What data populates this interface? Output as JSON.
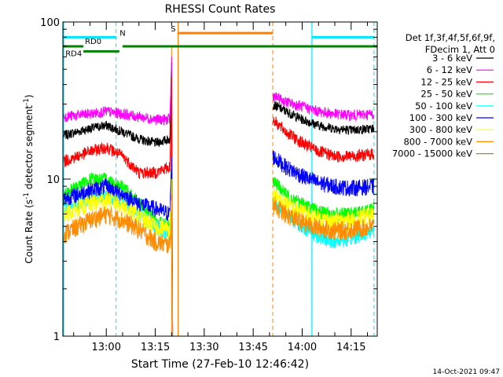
{
  "chart_data": {
    "type": "line",
    "title": "RHESSI Count Rates",
    "xlabel": "Start Time (27-Feb-10 12:46:42)",
    "ylabel": "Count Rate (s⁻¹ detector segment⁻¹)",
    "ylabel_main": "Count Rate (s",
    "ylabel_mid": " detector segment",
    "ylabel_sup": "-1",
    "ylabel_close": ")",
    "yscale": "log",
    "ylim": [
      1,
      100
    ],
    "xlim": [
      "12:46:42",
      "14:23:00"
    ],
    "x_ticks": [
      "13:00",
      "13:15",
      "13:30",
      "13:45",
      "14:00",
      "14:15"
    ],
    "y_ticks": [
      "1",
      "10",
      "100"
    ],
    "timestamp": "14-Oct-2021 09:47",
    "legend_header": [
      "Det 1f,3f,4f,5f,6f,9f,",
      "FDecim 1, Att 0"
    ],
    "legend_placement": "right",
    "gap": [
      "13:22:00",
      "13:51:00"
    ],
    "spike_time": "13:20:00",
    "series": [
      {
        "name": "3 - 6 keV",
        "color": "#000000",
        "x": [
          "12:47",
          "12:55",
          "13:00",
          "13:05",
          "13:10",
          "13:15",
          "13:19:30",
          "13:20:00",
          "13:51",
          "13:55",
          "14:00",
          "14:05",
          "14:10",
          "14:15",
          "14:22"
        ],
        "values": [
          19,
          21,
          22,
          20,
          18,
          17,
          18,
          55,
          30,
          27,
          24,
          22,
          21,
          20.5,
          21
        ]
      },
      {
        "name": "6 - 12 keV",
        "color": "#ff00ff",
        "x": [
          "12:47",
          "12:55",
          "13:00",
          "13:05",
          "13:10",
          "13:15",
          "13:19:30",
          "13:20:00",
          "13:51",
          "13:55",
          "14:00",
          "14:05",
          "14:10",
          "14:15",
          "14:22"
        ],
        "values": [
          25,
          26,
          27,
          26,
          25,
          24,
          24,
          60,
          34,
          31,
          29,
          27,
          26,
          25.5,
          26
        ]
      },
      {
        "name": "12 - 25 keV",
        "color": "#ff0000",
        "x": [
          "12:47",
          "12:55",
          "13:00",
          "13:05",
          "13:10",
          "13:15",
          "13:19:30",
          "13:20:00",
          "13:51",
          "13:55",
          "14:00",
          "14:05",
          "14:10",
          "14:15",
          "14:22"
        ],
        "values": [
          13,
          15,
          16,
          14,
          11,
          11,
          12,
          45,
          24,
          20,
          17,
          15,
          14,
          14,
          14.5
        ]
      },
      {
        "name": "25 - 50 keV",
        "color": "#00ff00",
        "x": [
          "12:47",
          "12:55",
          "13:00",
          "13:05",
          "13:10",
          "13:15",
          "13:19:30",
          "13:20:00",
          "13:51",
          "13:55",
          "14:00",
          "14:05",
          "14:10",
          "14:15",
          "14:22"
        ],
        "values": [
          8,
          10,
          10,
          9,
          7,
          5.5,
          5,
          12,
          10,
          8,
          7,
          6.2,
          6,
          6,
          6.5
        ]
      },
      {
        "name": "50 - 100 keV",
        "color": "#00ffff",
        "x": [
          "12:47",
          "12:55",
          "13:00",
          "13:05",
          "13:10",
          "13:15",
          "13:19:30",
          "13:20:00",
          "13:51",
          "13:55",
          "14:00",
          "14:05",
          "14:10",
          "14:15",
          "14:22"
        ],
        "values": [
          6.5,
          7.5,
          8,
          7.2,
          6,
          5,
          4.5,
          10,
          7,
          6,
          5,
          4.3,
          4,
          4.2,
          4.8
        ]
      },
      {
        "name": "100 - 300 keV",
        "color": "#0000ff",
        "x": [
          "12:47",
          "12:55",
          "13:00",
          "13:05",
          "13:10",
          "13:15",
          "13:19:30",
          "13:20:00",
          "13:51",
          "13:55",
          "14:00",
          "14:05",
          "14:10",
          "14:15",
          "14:22"
        ],
        "values": [
          7.5,
          8.5,
          9,
          8,
          7,
          6.5,
          6,
          14,
          14,
          12,
          10.5,
          9.5,
          9,
          8.8,
          9
        ]
      },
      {
        "name": "300 - 800 keV",
        "color": "#ffff00",
        "x": [
          "12:47",
          "12:55",
          "13:00",
          "13:05",
          "13:10",
          "13:15",
          "13:19:30",
          "13:20:00",
          "13:51",
          "13:55",
          "14:00",
          "14:05",
          "14:10",
          "14:15",
          "14:22"
        ],
        "values": [
          6,
          7,
          7.5,
          6.8,
          5.8,
          5,
          4.8,
          10,
          8,
          7,
          6.2,
          5.6,
          5.4,
          5.5,
          6
        ]
      },
      {
        "name": "800 - 7000 keV",
        "color": "#ff8c00",
        "x": [
          "12:47",
          "12:55",
          "13:00",
          "13:05",
          "13:10",
          "13:15",
          "13:19:30",
          "13:20:00",
          "13:51",
          "13:55",
          "14:00",
          "14:05",
          "14:10",
          "14:15",
          "14:22"
        ],
        "values": [
          4.5,
          5.5,
          6,
          5.5,
          4.8,
          4,
          3.8,
          8,
          7,
          6,
          5.3,
          4.9,
          4.7,
          4.8,
          5
        ]
      },
      {
        "name": "7000 - 15000 keV",
        "color": "#a0882a",
        "x": [],
        "values": []
      }
    ],
    "annotations": {
      "N": {
        "label": "N",
        "color": "#00e5ff",
        "segments": [
          [
            "12:46:42",
            "13:03:00"
          ],
          [
            "14:03:00",
            "14:22:00"
          ]
        ],
        "value": 80,
        "markers": [
          "13:03:00",
          "14:03:00",
          "14:22:00"
        ]
      },
      "S": {
        "label": "S",
        "color": "#ff7f00",
        "segments": [
          [
            "13:22:00",
            "13:51:00"
          ]
        ],
        "value": 85,
        "markers": [
          "13:22:00",
          "13:51:00"
        ]
      },
      "RD0": {
        "label": "RD0",
        "color": "#008000",
        "segments": [
          [
            "12:46:42",
            "12:53:00"
          ],
          [
            "13:05:00",
            "14:23:00"
          ]
        ],
        "value": 70
      },
      "RD4": {
        "label": "RD4",
        "color": "#008000",
        "segments": [
          [
            "12:53:00",
            "13:04:00"
          ]
        ],
        "value": 65
      }
    },
    "grid": false
  }
}
